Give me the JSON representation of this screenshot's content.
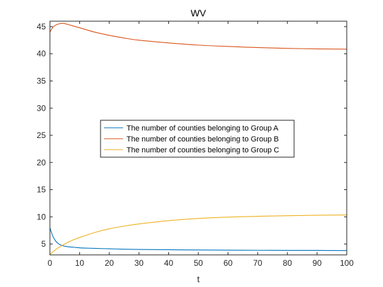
{
  "chart_data": {
    "type": "line",
    "title": "WV",
    "xlabel": "t",
    "ylabel": "",
    "xlim": [
      0,
      100
    ],
    "ylim": [
      3,
      46
    ],
    "xticks": [
      0,
      10,
      20,
      30,
      40,
      50,
      60,
      70,
      80,
      90,
      100
    ],
    "yticks": [
      5,
      10,
      15,
      20,
      25,
      30,
      35,
      40,
      45
    ],
    "grid": false,
    "legend_position": "center-left",
    "series": [
      {
        "name": "The number of counties belonging to Group A",
        "color": "#0072BD",
        "x": [
          0,
          1,
          2,
          3,
          4,
          5,
          6,
          8,
          10,
          12,
          15,
          20,
          25,
          30,
          40,
          50,
          60,
          70,
          80,
          90,
          100
        ],
        "y": [
          8.0,
          6.4,
          5.5,
          5.0,
          4.75,
          4.6,
          4.5,
          4.4,
          4.3,
          4.25,
          4.2,
          4.12,
          4.05,
          4.0,
          3.95,
          3.9,
          3.87,
          3.85,
          3.83,
          3.82,
          3.8
        ]
      },
      {
        "name": "The number of counties belonging to Group B",
        "color": "#D95319",
        "x": [
          0,
          1,
          2,
          3,
          4,
          5,
          6,
          8,
          10,
          15,
          20,
          25,
          30,
          40,
          50,
          60,
          70,
          80,
          90,
          100
        ],
        "y": [
          44.0,
          44.9,
          45.3,
          45.5,
          45.6,
          45.55,
          45.4,
          45.1,
          44.8,
          44.0,
          43.4,
          42.9,
          42.5,
          42.0,
          41.6,
          41.35,
          41.15,
          41.0,
          40.9,
          40.85
        ]
      },
      {
        "name": "The number of counties belonging to Group C",
        "color": "#EDB120",
        "x": [
          0,
          2,
          4,
          6,
          8,
          10,
          15,
          20,
          25,
          30,
          40,
          50,
          60,
          70,
          80,
          90,
          100
        ],
        "y": [
          3.1,
          4.0,
          4.7,
          5.3,
          5.8,
          6.2,
          7.1,
          7.8,
          8.3,
          8.7,
          9.3,
          9.7,
          9.95,
          10.1,
          10.2,
          10.3,
          10.35
        ]
      }
    ]
  }
}
